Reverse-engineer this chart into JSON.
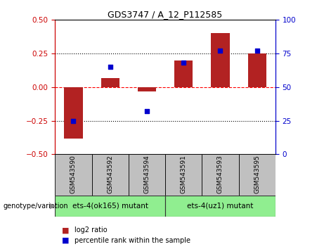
{
  "title": "GDS3747 / A_12_P112585",
  "samples": [
    "GSM543590",
    "GSM543592",
    "GSM543594",
    "GSM543591",
    "GSM543593",
    "GSM543595"
  ],
  "log2_ratio": [
    -0.38,
    0.07,
    -0.03,
    0.2,
    0.4,
    0.25
  ],
  "percentile_rank": [
    25,
    65,
    32,
    68,
    77,
    77
  ],
  "groups": [
    {
      "label": "ets-4(ok165) mutant",
      "samples_idx": [
        0,
        1,
        2
      ]
    },
    {
      "label": "ets-4(uz1) mutant",
      "samples_idx": [
        3,
        4,
        5
      ]
    }
  ],
  "bar_color": "#B22222",
  "dot_color": "#0000CD",
  "ylim_left": [
    -0.5,
    0.5
  ],
  "ylim_right": [
    0,
    100
  ],
  "yticks_left": [
    -0.5,
    -0.25,
    0,
    0.25,
    0.5
  ],
  "yticks_right": [
    0,
    25,
    50,
    75,
    100
  ],
  "hlines": [
    -0.25,
    0.0,
    0.25
  ],
  "hline_colors": [
    "black",
    "red",
    "black"
  ],
  "bar_width": 0.5,
  "dot_size": 25,
  "left_tick_color": "#CC0000",
  "right_tick_color": "#0000CC",
  "bg_color": "#FFFFFF",
  "legend_items": [
    "log2 ratio",
    "percentile rank within the sample"
  ],
  "legend_colors": [
    "#B22222",
    "#0000CD"
  ],
  "genotype_label": "genotype/variation",
  "sample_box_color": "#C0C0C0",
  "group1_color": "#90EE90",
  "group2_color": "#66DD44"
}
